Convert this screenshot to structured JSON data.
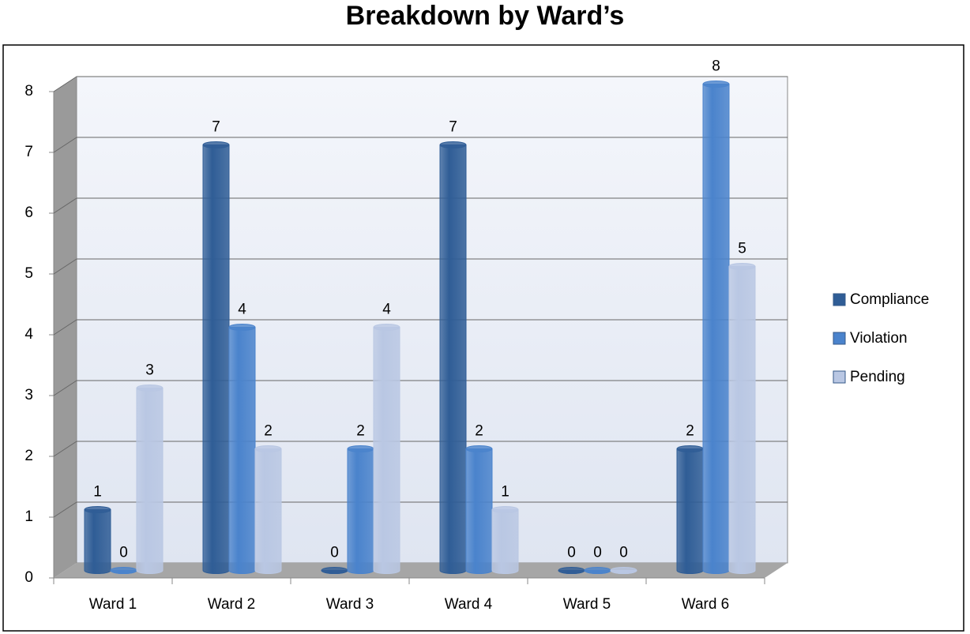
{
  "chart_data": {
    "type": "bar",
    "title": "Breakdown by Ward’s",
    "categories": [
      "Ward 1",
      "Ward 2",
      "Ward 3",
      "Ward 4",
      "Ward 5",
      "Ward 6"
    ],
    "series": [
      {
        "name": "Compliance",
        "color": "#2f5d96",
        "values": [
          1,
          7,
          0,
          7,
          0,
          2
        ]
      },
      {
        "name": "Violation",
        "color": "#4a83cc",
        "values": [
          0,
          4,
          2,
          2,
          0,
          8
        ]
      },
      {
        "name": "Pending",
        "color": "#b9c7e3",
        "values": [
          3,
          2,
          4,
          1,
          0,
          5
        ]
      }
    ],
    "ylim": [
      0,
      8
    ],
    "yticks": [
      0,
      1,
      2,
      3,
      4,
      5,
      6,
      7,
      8
    ],
    "grid": true,
    "legend": "right"
  }
}
